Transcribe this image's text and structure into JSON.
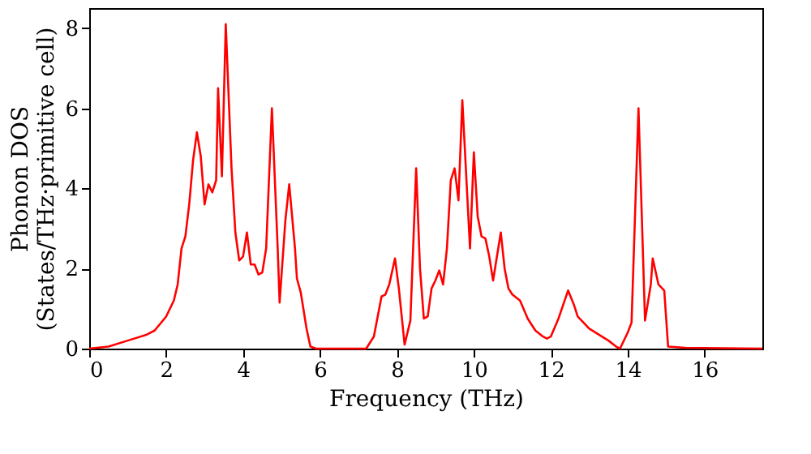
{
  "chart_data": {
    "type": "line",
    "xlabel": "Frequency (THz)",
    "ylabel": "Phonon DOS\n(States/THz·primitive cell)",
    "x": [
      0,
      0.5,
      1,
      1.5,
      1.7,
      2,
      2.2,
      2.3,
      2.4,
      2.5,
      2.6,
      2.7,
      2.8,
      2.9,
      3.0,
      3.1,
      3.2,
      3.3,
      3.35,
      3.45,
      3.55,
      3.7,
      3.8,
      3.9,
      4.0,
      4.1,
      4.2,
      4.3,
      4.4,
      4.5,
      4.6,
      4.75,
      4.9,
      4.95,
      5.1,
      5.2,
      5.35,
      5.4,
      5.5,
      5.65,
      5.75,
      5.9,
      7.2,
      7.4,
      7.5,
      7.6,
      7.7,
      7.8,
      7.95,
      8.05,
      8.2,
      8.35,
      8.5,
      8.6,
      8.7,
      8.8,
      8.9,
      9.0,
      9.1,
      9.2,
      9.3,
      9.4,
      9.5,
      9.6,
      9.7,
      9.9,
      10.0,
      10.1,
      10.2,
      10.3,
      10.4,
      10.5,
      10.7,
      10.8,
      10.9,
      11.0,
      11.2,
      11.4,
      11.6,
      11.8,
      11.9,
      12.0,
      12.2,
      12.45,
      12.6,
      12.7,
      13.0,
      13.5,
      13.7,
      13.8,
      14.0,
      14.1,
      14.28,
      14.45,
      14.6,
      14.65,
      14.8,
      14.95,
      15.05,
      15.5,
      17.5
    ],
    "series": [
      {
        "color": "#ff0000",
        "values": [
          0,
          0.05,
          0.2,
          0.35,
          0.45,
          0.8,
          1.2,
          1.6,
          2.5,
          2.8,
          3.6,
          4.7,
          5.4,
          4.8,
          3.6,
          4.1,
          3.9,
          4.2,
          6.5,
          4.3,
          8.1,
          4.5,
          2.9,
          2.2,
          2.3,
          2.9,
          2.1,
          2.1,
          1.85,
          1.9,
          2.5,
          6.0,
          2.5,
          1.15,
          3.2,
          4.1,
          2.5,
          1.75,
          1.4,
          0.5,
          0.05,
          0,
          0,
          0.3,
          0.8,
          1.3,
          1.35,
          1.6,
          2.25,
          1.5,
          0.1,
          0.7,
          4.5,
          2.0,
          0.75,
          0.8,
          1.5,
          1.7,
          1.95,
          1.6,
          2.5,
          4.2,
          4.5,
          3.7,
          6.2,
          2.5,
          4.9,
          3.3,
          2.8,
          2.75,
          2.3,
          1.7,
          2.9,
          2.0,
          1.5,
          1.35,
          1.2,
          0.75,
          0.45,
          0.3,
          0.25,
          0.3,
          0.75,
          1.45,
          1.1,
          0.8,
          0.5,
          0.2,
          0.05,
          0,
          0.4,
          0.65,
          6.0,
          0.7,
          1.6,
          2.25,
          1.6,
          1.45,
          0.05,
          0.02,
          0
        ]
      }
    ],
    "xlim": [
      0,
      17.5
    ],
    "xticks": [
      0,
      2,
      4,
      6,
      8,
      10,
      12,
      14,
      16
    ],
    "ylim": [
      0,
      8.5
    ],
    "yticks": [
      0,
      2,
      4,
      6,
      8
    ],
    "grid": false,
    "marker": "none",
    "line_style": "solid"
  }
}
